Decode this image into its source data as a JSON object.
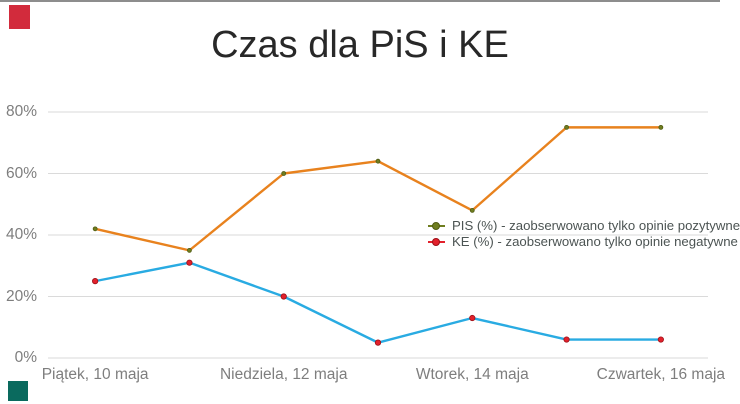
{
  "slide": {
    "title": "Czas dla PiS i KE",
    "title_color": "#282828"
  },
  "decorations": {
    "top_bar_color": "#8d8d8d",
    "top_left_square_color": "#d22b3c",
    "bottom_left_square_color": "#0a6a5e"
  },
  "chart_data": {
    "type": "line",
    "title": "Czas dla PiS i KE",
    "num_points": 7,
    "x_tick_labels": [
      "Piątek, 10 maja",
      "Niedziela, 12 maja",
      "Wtorek, 14 maja",
      "Czwartek, 16 maja"
    ],
    "x_tick_point_indexes": [
      0,
      2,
      4,
      6
    ],
    "yticks": [
      0,
      20,
      40,
      60,
      80
    ],
    "ytick_labels": [
      "0%",
      "20%",
      "40%",
      "60%",
      "80%"
    ],
    "ylim": [
      0,
      87
    ],
    "grid": "horizontal-only",
    "grid_color": "#dadada",
    "axis_label_color": "#7e7e7e",
    "legend_position": "inside-right-middle",
    "legend_text_color": "#4c5453",
    "series": [
      {
        "id": "pis",
        "name": "PIS (%) - zaobserwowano tylko opinie pozytywne",
        "values": [
          42,
          35,
          60,
          64,
          48,
          75,
          75
        ],
        "line_color": "#e8821e",
        "marker_color": "#6f7d1f",
        "marker_border": "#4f5a12",
        "marker_shape": "small-dot"
      },
      {
        "id": "ke",
        "name": "KE (%) - zaobserwowano tylko opinie negatywne",
        "values": [
          25,
          31,
          20,
          5,
          13,
          6,
          6
        ],
        "line_color": "#29abe2",
        "marker_color": "#e2212c",
        "marker_border": "#9d1017",
        "marker_shape": "dot"
      }
    ]
  }
}
